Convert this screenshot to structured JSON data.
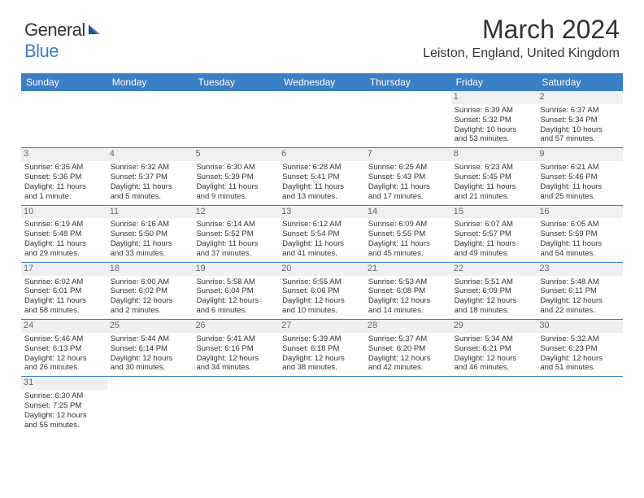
{
  "logo": {
    "word1": "General",
    "word2": "Blue"
  },
  "title": "March 2024",
  "location": "Leiston, England, United Kingdom",
  "colors": {
    "brand_blue": "#3b7fc4",
    "text": "#333333",
    "daybar": "#eef0f2",
    "white": "#ffffff"
  },
  "typography": {
    "title_fontsize": 32,
    "location_fontsize": 16,
    "dayhead_fontsize": 12,
    "cell_fontsize": 10
  },
  "day_headers": [
    "Sunday",
    "Monday",
    "Tuesday",
    "Wednesday",
    "Thursday",
    "Friday",
    "Saturday"
  ],
  "weeks": [
    [
      null,
      null,
      null,
      null,
      null,
      {
        "n": "1",
        "sr": "Sunrise: 6:39 AM",
        "ss": "Sunset: 5:32 PM",
        "dl1": "Daylight: 10 hours",
        "dl2": "and 53 minutes."
      },
      {
        "n": "2",
        "sr": "Sunrise: 6:37 AM",
        "ss": "Sunset: 5:34 PM",
        "dl1": "Daylight: 10 hours",
        "dl2": "and 57 minutes."
      }
    ],
    [
      {
        "n": "3",
        "sr": "Sunrise: 6:35 AM",
        "ss": "Sunset: 5:36 PM",
        "dl1": "Daylight: 11 hours",
        "dl2": "and 1 minute."
      },
      {
        "n": "4",
        "sr": "Sunrise: 6:32 AM",
        "ss": "Sunset: 5:37 PM",
        "dl1": "Daylight: 11 hours",
        "dl2": "and 5 minutes."
      },
      {
        "n": "5",
        "sr": "Sunrise: 6:30 AM",
        "ss": "Sunset: 5:39 PM",
        "dl1": "Daylight: 11 hours",
        "dl2": "and 9 minutes."
      },
      {
        "n": "6",
        "sr": "Sunrise: 6:28 AM",
        "ss": "Sunset: 5:41 PM",
        "dl1": "Daylight: 11 hours",
        "dl2": "and 13 minutes."
      },
      {
        "n": "7",
        "sr": "Sunrise: 6:25 AM",
        "ss": "Sunset: 5:43 PM",
        "dl1": "Daylight: 11 hours",
        "dl2": "and 17 minutes."
      },
      {
        "n": "8",
        "sr": "Sunrise: 6:23 AM",
        "ss": "Sunset: 5:45 PM",
        "dl1": "Daylight: 11 hours",
        "dl2": "and 21 minutes."
      },
      {
        "n": "9",
        "sr": "Sunrise: 6:21 AM",
        "ss": "Sunset: 5:46 PM",
        "dl1": "Daylight: 11 hours",
        "dl2": "and 25 minutes."
      }
    ],
    [
      {
        "n": "10",
        "sr": "Sunrise: 6:19 AM",
        "ss": "Sunset: 5:48 PM",
        "dl1": "Daylight: 11 hours",
        "dl2": "and 29 minutes."
      },
      {
        "n": "11",
        "sr": "Sunrise: 6:16 AM",
        "ss": "Sunset: 5:50 PM",
        "dl1": "Daylight: 11 hours",
        "dl2": "and 33 minutes."
      },
      {
        "n": "12",
        "sr": "Sunrise: 6:14 AM",
        "ss": "Sunset: 5:52 PM",
        "dl1": "Daylight: 11 hours",
        "dl2": "and 37 minutes."
      },
      {
        "n": "13",
        "sr": "Sunrise: 6:12 AM",
        "ss": "Sunset: 5:54 PM",
        "dl1": "Daylight: 11 hours",
        "dl2": "and 41 minutes."
      },
      {
        "n": "14",
        "sr": "Sunrise: 6:09 AM",
        "ss": "Sunset: 5:55 PM",
        "dl1": "Daylight: 11 hours",
        "dl2": "and 45 minutes."
      },
      {
        "n": "15",
        "sr": "Sunrise: 6:07 AM",
        "ss": "Sunset: 5:57 PM",
        "dl1": "Daylight: 11 hours",
        "dl2": "and 49 minutes."
      },
      {
        "n": "16",
        "sr": "Sunrise: 6:05 AM",
        "ss": "Sunset: 5:59 PM",
        "dl1": "Daylight: 11 hours",
        "dl2": "and 54 minutes."
      }
    ],
    [
      {
        "n": "17",
        "sr": "Sunrise: 6:02 AM",
        "ss": "Sunset: 6:01 PM",
        "dl1": "Daylight: 11 hours",
        "dl2": "and 58 minutes."
      },
      {
        "n": "18",
        "sr": "Sunrise: 6:00 AM",
        "ss": "Sunset: 6:02 PM",
        "dl1": "Daylight: 12 hours",
        "dl2": "and 2 minutes."
      },
      {
        "n": "19",
        "sr": "Sunrise: 5:58 AM",
        "ss": "Sunset: 6:04 PM",
        "dl1": "Daylight: 12 hours",
        "dl2": "and 6 minutes."
      },
      {
        "n": "20",
        "sr": "Sunrise: 5:55 AM",
        "ss": "Sunset: 6:06 PM",
        "dl1": "Daylight: 12 hours",
        "dl2": "and 10 minutes."
      },
      {
        "n": "21",
        "sr": "Sunrise: 5:53 AM",
        "ss": "Sunset: 6:08 PM",
        "dl1": "Daylight: 12 hours",
        "dl2": "and 14 minutes."
      },
      {
        "n": "22",
        "sr": "Sunrise: 5:51 AM",
        "ss": "Sunset: 6:09 PM",
        "dl1": "Daylight: 12 hours",
        "dl2": "and 18 minutes."
      },
      {
        "n": "23",
        "sr": "Sunrise: 5:48 AM",
        "ss": "Sunset: 6:11 PM",
        "dl1": "Daylight: 12 hours",
        "dl2": "and 22 minutes."
      }
    ],
    [
      {
        "n": "24",
        "sr": "Sunrise: 5:46 AM",
        "ss": "Sunset: 6:13 PM",
        "dl1": "Daylight: 12 hours",
        "dl2": "and 26 minutes."
      },
      {
        "n": "25",
        "sr": "Sunrise: 5:44 AM",
        "ss": "Sunset: 6:14 PM",
        "dl1": "Daylight: 12 hours",
        "dl2": "and 30 minutes."
      },
      {
        "n": "26",
        "sr": "Sunrise: 5:41 AM",
        "ss": "Sunset: 6:16 PM",
        "dl1": "Daylight: 12 hours",
        "dl2": "and 34 minutes."
      },
      {
        "n": "27",
        "sr": "Sunrise: 5:39 AM",
        "ss": "Sunset: 6:18 PM",
        "dl1": "Daylight: 12 hours",
        "dl2": "and 38 minutes."
      },
      {
        "n": "28",
        "sr": "Sunrise: 5:37 AM",
        "ss": "Sunset: 6:20 PM",
        "dl1": "Daylight: 12 hours",
        "dl2": "and 42 minutes."
      },
      {
        "n": "29",
        "sr": "Sunrise: 5:34 AM",
        "ss": "Sunset: 6:21 PM",
        "dl1": "Daylight: 12 hours",
        "dl2": "and 46 minutes."
      },
      {
        "n": "30",
        "sr": "Sunrise: 5:32 AM",
        "ss": "Sunset: 6:23 PM",
        "dl1": "Daylight: 12 hours",
        "dl2": "and 51 minutes."
      }
    ],
    [
      {
        "n": "31",
        "sr": "Sunrise: 6:30 AM",
        "ss": "Sunset: 7:25 PM",
        "dl1": "Daylight: 12 hours",
        "dl2": "and 55 minutes."
      },
      null,
      null,
      null,
      null,
      null,
      null
    ]
  ]
}
